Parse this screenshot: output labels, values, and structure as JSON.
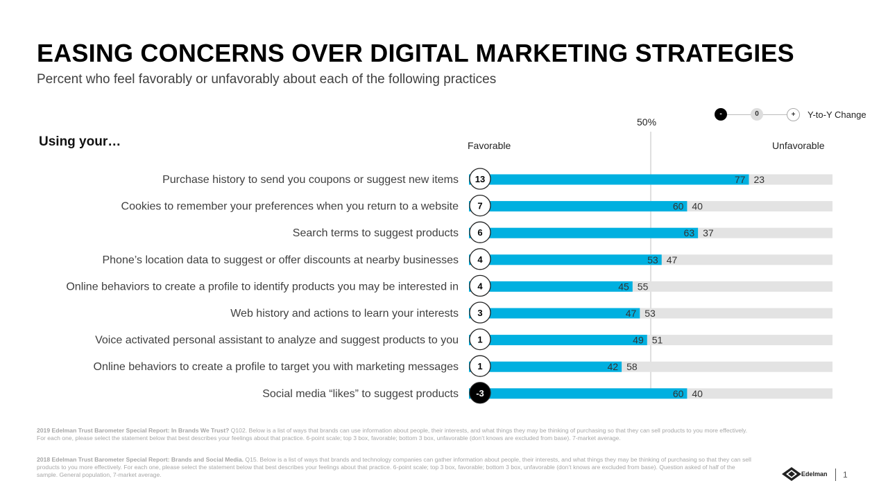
{
  "header": {
    "title": "EASING CONCERNS OVER DIGITAL MARKETING STRATEGIES",
    "subtitle": "Percent who feel favorably or unfavorably about each of the following practices",
    "section_label": "Using your…"
  },
  "legend": {
    "minus": "-",
    "zero": "0",
    "plus": "+",
    "label": "Y-to-Y Change"
  },
  "colors": {
    "favorable": "#00b0e0",
    "unfavorable": "#e3e3e3",
    "reference_line": "#bfbfbf"
  },
  "chart_data": {
    "type": "bar",
    "orientation": "horizontal-stacked",
    "favorable_label": "Favorable",
    "unfavorable_label": "Unfavorable",
    "reference_label": "50%",
    "reference_value": 50,
    "xlim": [
      0,
      100
    ],
    "categories": [
      "Purchase history to send you coupons or suggest new items",
      "Cookies to remember your preferences when you return to a website",
      "Search terms to suggest products",
      "Phone’s location data to suggest or offer discounts at nearby businesses",
      "Online behaviors to create a profile to identify products you may be interested in",
      "Web history and actions to learn your interests",
      "Voice activated personal assistant to analyze and suggest products to you",
      "Online behaviors to create a profile to target you with marketing messages",
      "Social media “likes” to suggest products"
    ],
    "series": [
      {
        "name": "Favorable",
        "values": [
          77,
          60,
          63,
          53,
          45,
          47,
          49,
          42,
          60
        ]
      },
      {
        "name": "Unfavorable",
        "values": [
          23,
          40,
          37,
          47,
          55,
          53,
          51,
          58,
          40
        ]
      }
    ],
    "yoy_change": [
      "13",
      "7",
      "6",
      "4",
      "4",
      "3",
      "1",
      "1",
      "-3"
    ],
    "yoy_negative": [
      false,
      false,
      false,
      false,
      false,
      false,
      false,
      false,
      true
    ]
  },
  "footnotes": {
    "note1_bold": "2019 Edelman Trust Barometer Special Report: In Brands We Trust?",
    "note1_text": " Q102. Below is a list of ways that brands can use information about people, their interests, and what things they may be thinking of purchasing so that they can sell products to you more effectively. For each one, please select the statement below that best describes your feelings about that practice. 6-point scale; top 3 box, favorable; bottom 3 box, unfavorable (don’t knows are excluded from base). 7-market average.",
    "note2_bold": "2018 Edelman Trust Barometer Special Report: Brands and Social Media.",
    "note2_text": " Q15. Below is a list of ways that brands and technology companies can gather information about people, their interests, and what things they may be thinking of purchasing so that they can sell products to you more effectively. For each one, please select the statement below that best describes your feelings about that practice. 6-point scale; top 3 box, favorable; bottom 3 box, unfavorable (don’t knows are excluded from base). Question asked of half of the sample. General population, 7-market average."
  },
  "branding": {
    "logo_text": "Edelman",
    "page_number": "1"
  }
}
